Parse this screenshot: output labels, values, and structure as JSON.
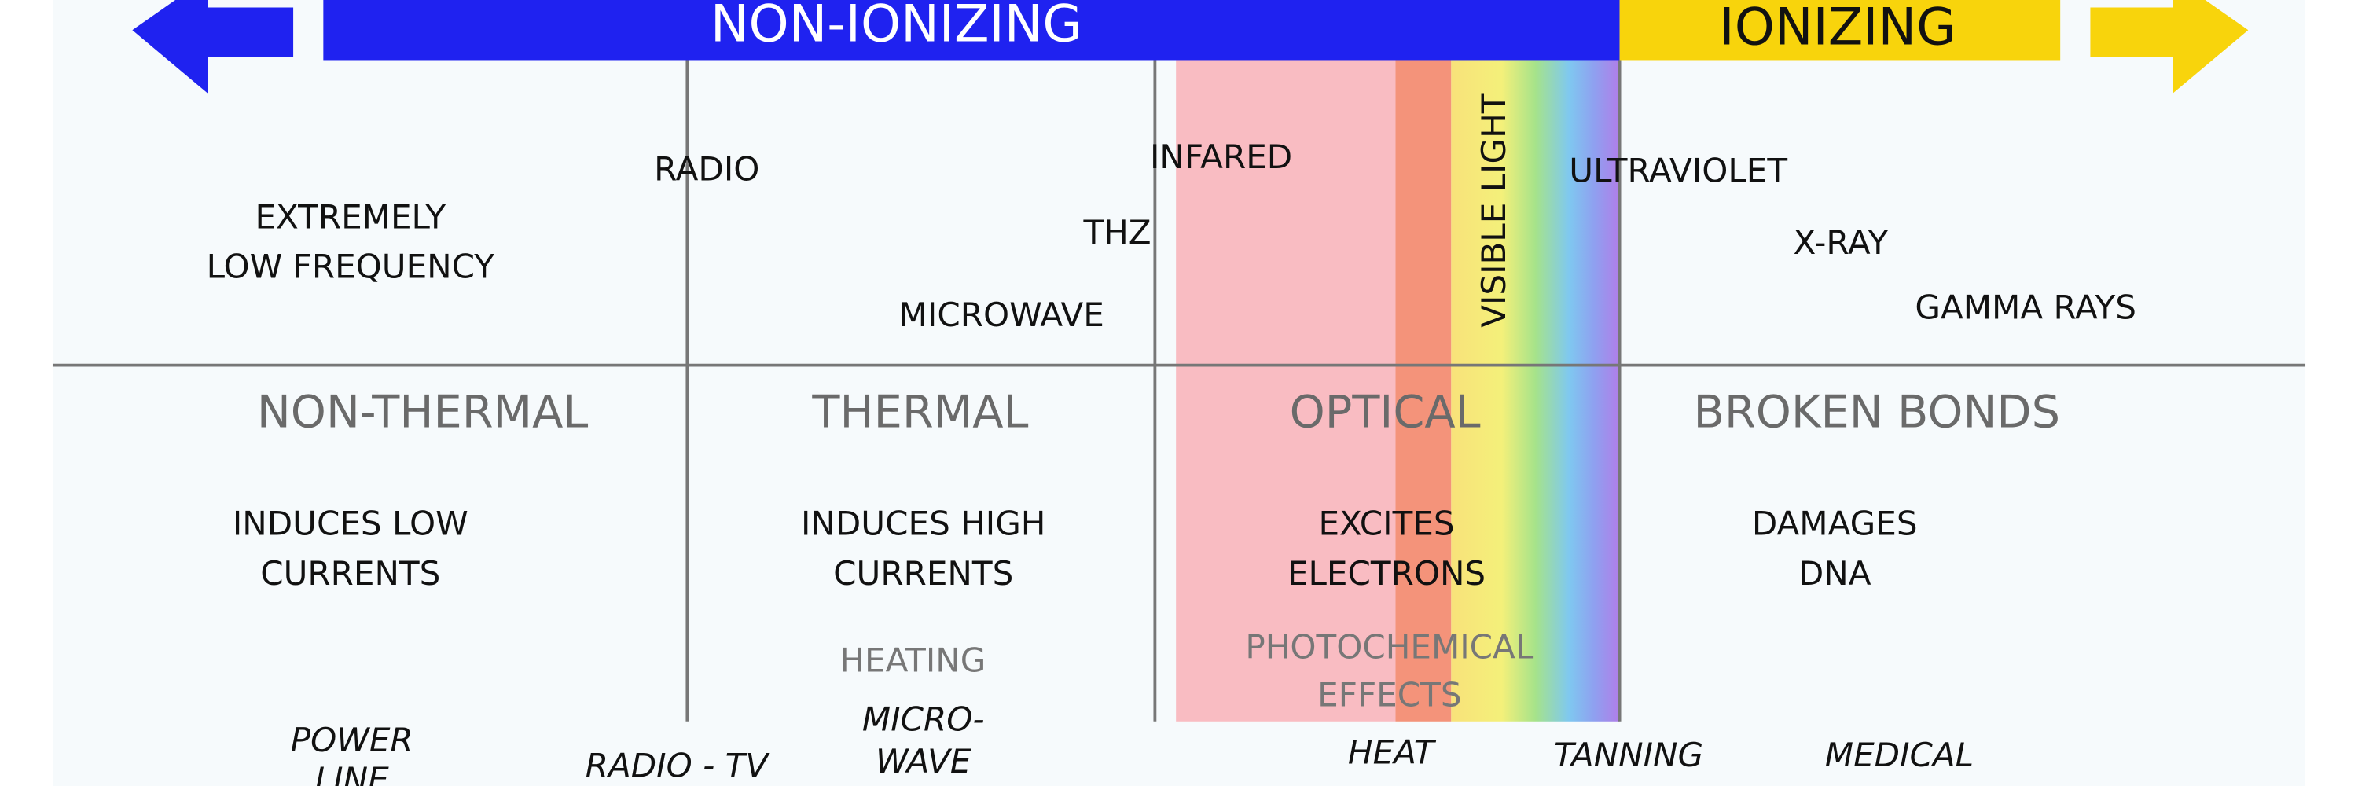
{
  "header": {
    "non_ionizing": "NON-IONIZING",
    "ionizing": "IONIZING"
  },
  "spectrum": {
    "elf": [
      "EXTREMELY",
      "LOW FREQUENCY"
    ],
    "radio": "RADIO",
    "microwave": "MICROWAVE",
    "thz": "THZ",
    "infrared": "INFARED",
    "visible": "VISIBLE LIGHT",
    "ultraviolet": "ULTRAVIOLET",
    "xray": "X-RAY",
    "gamma": "GAMMA RAYS"
  },
  "effects": [
    {
      "title": "NON-THERMAL",
      "description": [
        "INDUCES LOW",
        "CURRENTS"
      ]
    },
    {
      "title": "THERMAL",
      "description": [
        "INDUCES HIGH",
        "CURRENTS"
      ],
      "note": "HEATING"
    },
    {
      "title": "OPTICAL",
      "description": [
        "EXCITES",
        "ELECTRONS"
      ],
      "note": [
        "PHOTOCHEMICAL",
        "EFFECTS"
      ]
    },
    {
      "title": "BROKEN BONDS",
      "description": [
        "DAMAGES",
        "DNA"
      ]
    }
  ],
  "examples": {
    "power_line": [
      "POWER",
      "LINE"
    ],
    "radio_tv": "RADIO - TV",
    "microwave_oven": [
      "MICRO-",
      "WAVE"
    ],
    "heat_lamp": "HEAT",
    "tanning": "TANNING",
    "medical": "MEDICAL"
  }
}
